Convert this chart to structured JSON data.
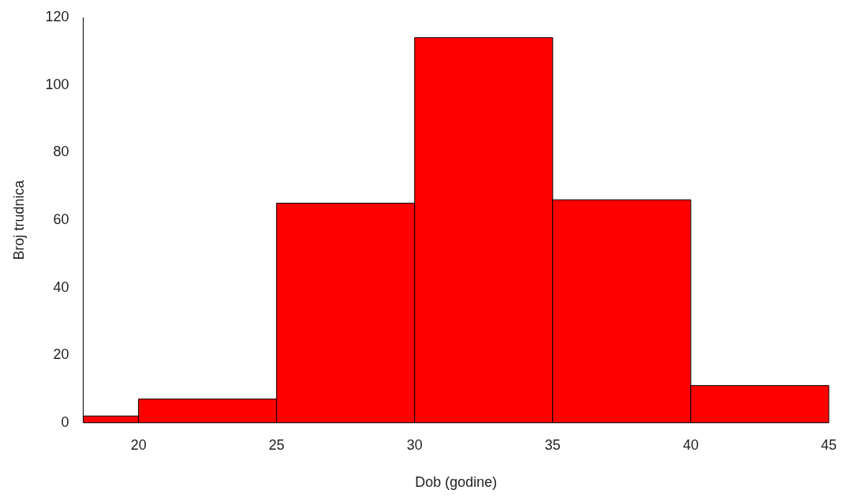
{
  "chart_data": {
    "type": "histogram",
    "xlabel": "Dob (godine)",
    "ylabel": "Broj trudnica",
    "bins": [
      18,
      20,
      25,
      30,
      35,
      40,
      45
    ],
    "values": [
      2,
      7,
      65,
      114,
      66,
      11
    ],
    "color": "#ff0000",
    "xlim": [
      18,
      45
    ],
    "xticks": [
      20,
      25,
      30,
      35,
      40,
      45
    ],
    "ylim": [
      0,
      120
    ],
    "yticks": [
      0,
      20,
      40,
      60,
      80,
      100,
      120
    ],
    "grid": false,
    "legend": false
  }
}
